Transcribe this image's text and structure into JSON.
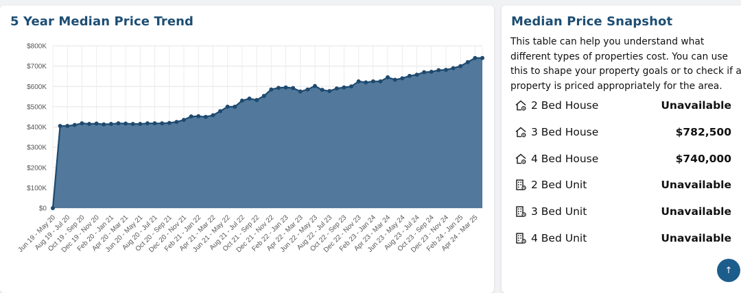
{
  "trend": {
    "title": "5 Year Median Price Trend"
  },
  "snapshot": {
    "title": "Median Price Snapshot",
    "description": "This table can help you understand what different types of properties cost. You can use this to shape your property goals or to check if a property is priced appropriately for the area.",
    "rows": [
      {
        "label": "2 Bed House",
        "value": "Unavailable",
        "icon": "house-icon"
      },
      {
        "label": "3 Bed House",
        "value": "$782,500",
        "icon": "house-icon"
      },
      {
        "label": "4 Bed House",
        "value": "$740,000",
        "icon": "house-icon"
      },
      {
        "label": "2 Bed Unit",
        "value": "Unavailable",
        "icon": "building-icon"
      },
      {
        "label": "3 Bed Unit",
        "value": "Unavailable",
        "icon": "building-icon"
      },
      {
        "label": "4 Bed Unit",
        "value": "Unavailable",
        "icon": "building-icon"
      }
    ]
  },
  "scroll_top": {
    "icon": "arrow-up-icon",
    "glyph": "↑"
  },
  "colors": {
    "accent": "#1d4e74",
    "area_fill": "#52799b",
    "line": "#1e4a6f",
    "button": "#1d5d8c"
  },
  "chart_data": {
    "type": "area",
    "title": "5 Year Median Price Trend",
    "xlabel": "",
    "ylabel": "",
    "ylim": [
      0,
      800000
    ],
    "yticks": [
      "$0",
      "$100K",
      "$200K",
      "$300K",
      "$400K",
      "$500K",
      "$600K",
      "$700K",
      "$800K"
    ],
    "grid": true,
    "x_tick_labels": [
      "Jun 19 - May 20",
      "Aug 19 - Jul 20",
      "Oct 19 - Sep 20",
      "Dec 19 - Nov 20",
      "Feb 20 - Jan 21",
      "Apr 20 - Mar 21",
      "Jun 20 - May 21",
      "Aug 20 - Jul 21",
      "Oct 20 - Sep 21",
      "Dec 20 - Nov 21",
      "Feb 21 - Jan 22",
      "Apr 21 - Mar 22",
      "Jun 21 - May 22",
      "Aug 21 - Jul 22",
      "Oct 21 - Sep 22",
      "Dec 21 - Nov 22",
      "Feb 22 - Jan 23",
      "Apr 22 - Mar 23",
      "Jun 22 - May 23",
      "Aug 22 - Jul 23",
      "Oct 22 - Sep 23",
      "Dec 22 - Nov 23",
      "Feb 23 - Jan 24",
      "Apr 23 - Mar 24",
      "Jun 23 - May 24",
      "Aug 23 - Jul 24",
      "Oct 23 - Sep 24",
      "Dec 23 - Nov 24",
      "Feb 24 - Jan 25",
      "Apr 24 - Mar 25"
    ],
    "values": [
      0,
      405000,
      405000,
      410000,
      418000,
      415000,
      417000,
      413000,
      415000,
      418000,
      417000,
      415000,
      415000,
      418000,
      418000,
      418000,
      420000,
      425000,
      435000,
      452000,
      453000,
      450000,
      458000,
      478000,
      500000,
      500000,
      530000,
      540000,
      533000,
      553000,
      585000,
      593000,
      595000,
      592000,
      575000,
      585000,
      602000,
      583000,
      577000,
      590000,
      595000,
      600000,
      625000,
      620000,
      625000,
      625000,
      645000,
      633000,
      640000,
      652000,
      658000,
      670000,
      672000,
      680000,
      682000,
      690000,
      700000,
      720000,
      740000,
      740000
    ]
  }
}
